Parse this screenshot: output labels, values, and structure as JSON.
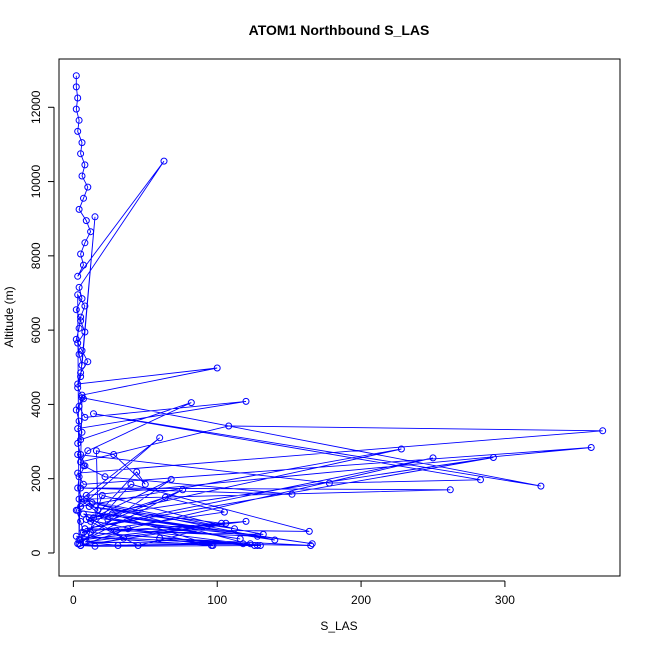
{
  "chart_data": {
    "type": "line",
    "title": "ATOM1 Northbound S_LAS",
    "xlabel": "S_LAS",
    "ylabel": "Altitude (m)",
    "xlim": [
      -10,
      380
    ],
    "ylim": [
      -620,
      13300
    ],
    "x_ticks": [
      "0",
      "100",
      "200",
      "300"
    ],
    "x_tick_values": [
      0,
      100,
      200,
      300
    ],
    "y_ticks": [
      "0",
      "2000",
      "4000",
      "6000",
      "8000",
      "10000",
      "12000"
    ],
    "y_tick_values": [
      0,
      2000,
      4000,
      6000,
      8000,
      10000,
      12000
    ],
    "color": "#0000ff",
    "marker": "open-circle",
    "legend": "none",
    "grid": false,
    "series": [
      {
        "x": [
          2,
          2,
          3,
          2,
          4,
          3,
          6,
          5,
          8,
          6,
          10,
          7,
          4,
          9,
          12,
          8,
          5,
          7,
          3,
          63,
          4,
          6,
          2,
          5,
          8,
          3,
          4,
          6,
          15,
          5,
          3,
          7,
          2,
          4,
          6,
          3,
          5,
          8,
          4,
          3,
          6,
          2,
          5,
          7,
          4,
          3,
          8,
          5,
          4,
          2,
          6,
          10,
          5,
          3,
          100,
          6,
          4,
          8,
          120,
          3,
          5,
          82,
          10,
          5,
          108,
          368,
          3,
          7,
          360,
          9,
          60,
          5,
          228,
          11,
          292,
          8,
          250,
          4,
          6,
          325,
          14,
          283,
          178,
          3,
          7,
          22,
          152,
          5,
          262,
          9,
          17,
          16,
          28,
          50,
          44,
          12,
          64,
          105,
          6,
          76,
          3,
          68,
          14,
          128,
          8,
          164,
          40,
          5,
          103,
          11,
          112,
          20,
          9,
          120,
          30,
          132,
          4,
          24,
          116,
          7,
          35,
          126,
          13,
          140,
          3,
          166,
          27,
          97,
          9,
          45,
          106,
          5,
          38,
          128,
          12,
          118,
          2,
          96,
          60,
          165,
          8,
          31,
          123,
          5,
          15,
          130
        ],
        "y": [
          12850,
          12550,
          12250,
          11950,
          11650,
          11350,
          11050,
          10750,
          10450,
          10150,
          9850,
          9550,
          9250,
          8950,
          8650,
          8350,
          8050,
          7750,
          7450,
          10550,
          7150,
          6850,
          6550,
          6250,
          5950,
          5650,
          5350,
          5050,
          9050,
          4750,
          4450,
          4150,
          3850,
          3550,
          3250,
          2950,
          2650,
          2350,
          2050,
          1750,
          1450,
          1150,
          850,
          550,
          250,
          6950,
          6650,
          6350,
          6050,
          5750,
          5450,
          5150,
          4850,
          4550,
          4980,
          4250,
          3950,
          3650,
          4080,
          3350,
          3050,
          4050,
          2750,
          2450,
          3420,
          3290,
          2150,
          1850,
          2840,
          1550,
          3100,
          1250,
          2800,
          950,
          2570,
          650,
          2560,
          350,
          4180,
          1800,
          3750,
          1970,
          1880,
          2650,
          2350,
          2050,
          1580,
          1750,
          1700,
          1450,
          1150,
          2750,
          2650,
          1850,
          2180,
          850,
          1500,
          1100,
          550,
          1700,
          250,
          1980,
          950,
          450,
          650,
          580,
          1850,
          350,
          800,
          1250,
          650,
          1550,
          300,
          850,
          600,
          500,
          1450,
          900,
          380,
          1050,
          400,
          200,
          1350,
          350,
          1150,
          250,
          1050,
          200,
          900,
          200,
          800,
          200,
          650,
          200,
          550,
          250,
          450,
          200,
          400,
          200,
          300,
          200,
          250,
          200,
          180,
          200
        ]
      }
    ]
  }
}
